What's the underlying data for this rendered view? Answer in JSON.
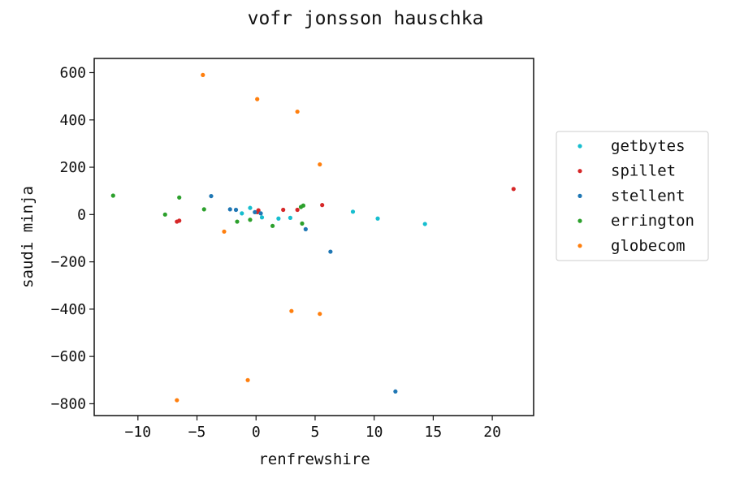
{
  "chart_data": {
    "type": "scatter",
    "title": "vofr jonsson hauschka",
    "xlabel": "renfrewshire",
    "ylabel": "saudi minja",
    "xlim": [
      -13.7,
      23.5
    ],
    "ylim": [
      -850,
      660
    ],
    "xticks": [
      -10,
      -5,
      0,
      5,
      10,
      15,
      20
    ],
    "yticks": [
      600,
      400,
      200,
      0,
      -200,
      -400,
      -600,
      -800
    ],
    "xtick_labels": [
      "−10",
      "−5",
      "0",
      "5",
      "10",
      "15",
      "20"
    ],
    "ytick_labels": [
      "600",
      "400",
      "200",
      "0",
      "−200",
      "−400",
      "−600",
      "−800"
    ],
    "grid": false,
    "legend_position": "right",
    "series": [
      {
        "name": "getbytes",
        "color": "#17becf",
        "points": [
          {
            "x": -1.2,
            "y": 5
          },
          {
            "x": -0.5,
            "y": 28
          },
          {
            "x": 0.5,
            "y": -12
          },
          {
            "x": 1.9,
            "y": -17
          },
          {
            "x": 2.9,
            "y": -14
          },
          {
            "x": 8.2,
            "y": 12
          },
          {
            "x": 10.3,
            "y": -17
          },
          {
            "x": 14.3,
            "y": -40
          }
        ]
      },
      {
        "name": "spillet",
        "color": "#d62728",
        "points": [
          {
            "x": -6.7,
            "y": -30
          },
          {
            "x": -6.5,
            "y": -26
          },
          {
            "x": 0.1,
            "y": 10
          },
          {
            "x": 0.2,
            "y": 18
          },
          {
            "x": 2.3,
            "y": 20
          },
          {
            "x": 3.5,
            "y": 20
          },
          {
            "x": 5.6,
            "y": 40
          },
          {
            "x": 21.8,
            "y": 108
          }
        ]
      },
      {
        "name": "stellent",
        "color": "#1f77b4",
        "points": [
          {
            "x": -3.8,
            "y": 78
          },
          {
            "x": -2.2,
            "y": 22
          },
          {
            "x": -1.7,
            "y": 20
          },
          {
            "x": -0.1,
            "y": 10
          },
          {
            "x": 0.4,
            "y": 5
          },
          {
            "x": 4.2,
            "y": -62
          },
          {
            "x": 6.3,
            "y": -157
          },
          {
            "x": 11.8,
            "y": -748
          }
        ]
      },
      {
        "name": "errington",
        "color": "#2ca02c",
        "points": [
          {
            "x": -12.1,
            "y": 80
          },
          {
            "x": -7.7,
            "y": 0
          },
          {
            "x": -6.5,
            "y": 72
          },
          {
            "x": -4.4,
            "y": 22
          },
          {
            "x": -1.6,
            "y": -30
          },
          {
            "x": -0.5,
            "y": -22
          },
          {
            "x": 1.4,
            "y": -48
          },
          {
            "x": 3.9,
            "y": -38
          },
          {
            "x": 4.0,
            "y": 38
          },
          {
            "x": 3.8,
            "y": 32
          }
        ]
      },
      {
        "name": "globecom",
        "color": "#ff7f0e",
        "points": [
          {
            "x": -4.5,
            "y": 590
          },
          {
            "x": 0.1,
            "y": 488
          },
          {
            "x": 3.5,
            "y": 435
          },
          {
            "x": 5.4,
            "y": 212
          },
          {
            "x": -2.7,
            "y": -72
          },
          {
            "x": 3.0,
            "y": -408
          },
          {
            "x": 5.4,
            "y": -420
          },
          {
            "x": -0.7,
            "y": -700
          },
          {
            "x": -6.7,
            "y": -785
          }
        ]
      }
    ]
  }
}
